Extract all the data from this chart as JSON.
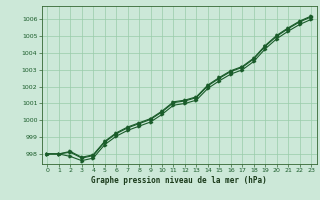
{
  "background_color": "#cce8d8",
  "grid_color": "#99ccaa",
  "line_color": "#1a5c2a",
  "xlabel": "Graphe pression niveau de la mer (hPa)",
  "ylim": [
    997.4,
    1006.8
  ],
  "xlim": [
    -0.5,
    23.5
  ],
  "yticks": [
    998,
    999,
    1000,
    1001,
    1002,
    1003,
    1004,
    1005,
    1006
  ],
  "xticks": [
    0,
    1,
    2,
    3,
    4,
    5,
    6,
    7,
    8,
    9,
    10,
    11,
    12,
    13,
    14,
    15,
    16,
    17,
    18,
    19,
    20,
    21,
    22,
    23
  ],
  "series1": [
    998.0,
    998.0,
    998.1,
    997.75,
    997.9,
    998.7,
    999.2,
    999.55,
    999.8,
    1000.05,
    1000.5,
    1001.05,
    1001.15,
    1001.35,
    1002.05,
    1002.5,
    1002.9,
    1003.15,
    1003.65,
    1004.4,
    1005.0,
    1005.45,
    1005.85,
    1006.15
  ],
  "series2": [
    998.0,
    998.0,
    998.15,
    997.8,
    997.95,
    998.75,
    999.25,
    999.6,
    999.85,
    1000.1,
    1000.55,
    1001.1,
    1001.2,
    1001.4,
    1002.1,
    1002.55,
    1002.95,
    1003.2,
    1003.7,
    1004.45,
    1005.05,
    1005.5,
    1005.9,
    1006.2
  ],
  "series3": [
    998.0,
    998.0,
    997.85,
    997.6,
    997.75,
    998.55,
    999.05,
    999.4,
    999.65,
    999.9,
    1000.35,
    1000.9,
    1001.0,
    1001.2,
    1001.9,
    1002.35,
    1002.75,
    1003.0,
    1003.5,
    1004.25,
    1004.85,
    1005.3,
    1005.7,
    1006.0
  ]
}
